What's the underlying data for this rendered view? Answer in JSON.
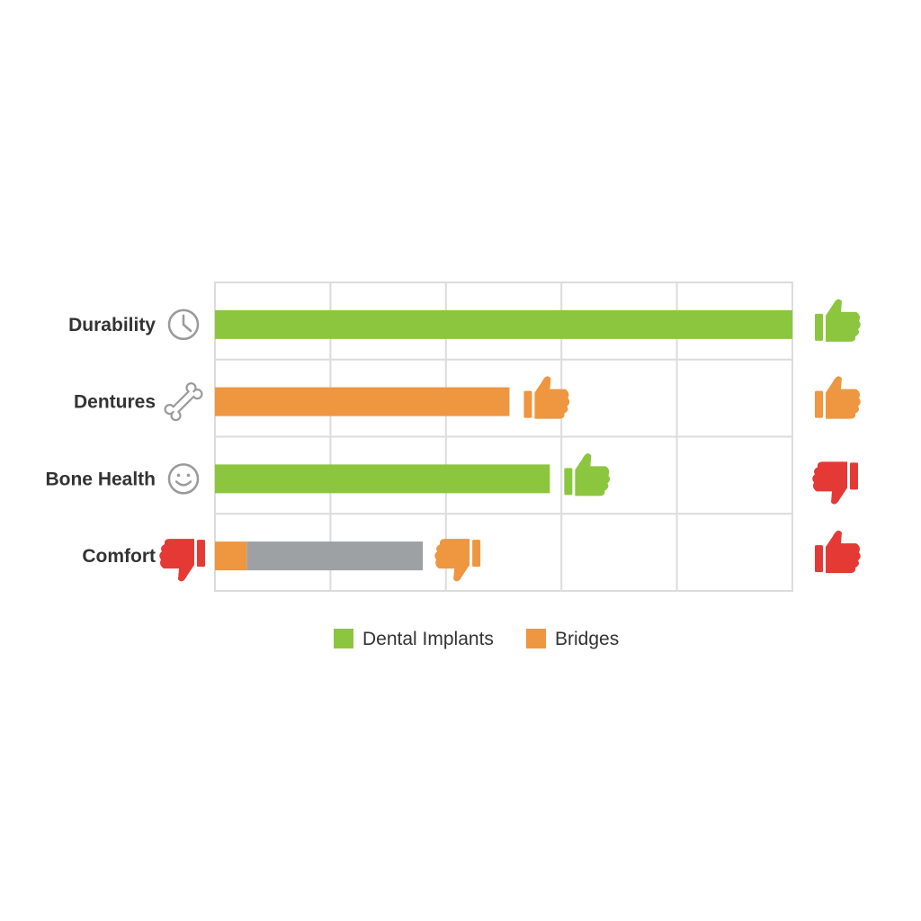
{
  "chart_data": {
    "type": "bar",
    "categories": [
      "Durability",
      "Dentures",
      "Bone Health",
      "Comfort"
    ],
    "xlim": [
      0,
      100
    ],
    "grid": true,
    "legend_position": "bottom-center",
    "series": [
      {
        "name": "Dental Implants",
        "color": "#8cc63f"
      },
      {
        "name": "Bridges",
        "color": "#ee9640"
      }
    ],
    "bars": [
      {
        "category": "Durability",
        "segments": [
          {
            "value": 100,
            "color": "#8cc63f"
          }
        ]
      },
      {
        "category": "Dentures",
        "segments": [
          {
            "value": 51,
            "color": "#ee9640"
          }
        ]
      },
      {
        "category": "Bone Health",
        "segments": [
          {
            "value": 58,
            "color": "#8cc63f"
          }
        ]
      },
      {
        "category": "Comfort",
        "segments": [
          {
            "value": 5.5,
            "color": "#ee9640"
          },
          {
            "value": 30.5,
            "color": "#9ea1a3"
          }
        ]
      }
    ],
    "category_icons": [
      "clock-icon",
      "bone-icon",
      "smile-icon",
      "thumbs-down-icon"
    ],
    "category_icon_colors": [
      "#9a9a9a",
      "#9a9a9a",
      "#9a9a9a",
      "#e53935"
    ],
    "bar_end_indicators": [
      {
        "category": "Durability",
        "icon": "thumbs-up-icon",
        "color": "#8cc63f",
        "at": 100
      },
      {
        "category": "Dentures",
        "icon": "thumbs-up-icon",
        "color": "#ee9640",
        "at": 51
      },
      {
        "category": "Bone Health",
        "icon": "thumbs-up-icon",
        "color": "#8cc63f",
        "at": 58
      },
      {
        "category": "Comfort",
        "icon": "thumbs-down-icon",
        "color": "#ee9640",
        "at": 36
      }
    ],
    "right_indicators": [
      {
        "category": "Durability",
        "icon": "thumbs-up-icon",
        "color": "#8cc63f"
      },
      {
        "category": "Dentures",
        "icon": "thumbs-up-icon",
        "color": "#ee9640"
      },
      {
        "category": "Bone Health",
        "icon": "thumbs-down-icon",
        "color": "#e53935"
      },
      {
        "category": "Comfort",
        "icon": "thumbs-up-icon",
        "color": "#e53935"
      }
    ]
  }
}
